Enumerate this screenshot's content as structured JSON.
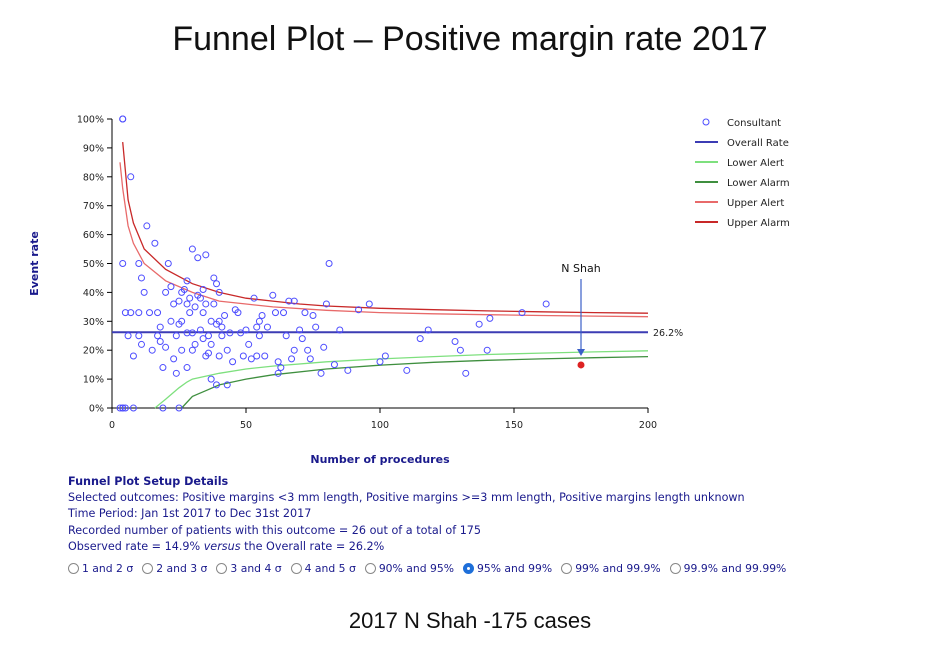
{
  "page": {
    "title": "Funnel Plot – Positive margin rate 2017",
    "caption": "2017 N Shah -175 cases"
  },
  "chart_data": {
    "type": "scatter",
    "xlabel": "Number of procedures",
    "ylabel": "Event rate",
    "xlim": [
      0,
      200
    ],
    "ylim": [
      0,
      100
    ],
    "xticks": [
      0,
      50,
      100,
      150,
      200
    ],
    "yticks": [
      0,
      10,
      20,
      30,
      40,
      50,
      60,
      70,
      80,
      90,
      100
    ],
    "ytick_suffix": "%",
    "overall_rate": 26.2,
    "overall_label": "26.2%",
    "legend_position": "top-right",
    "legend": [
      {
        "name": "Consultant",
        "kind": "marker",
        "color": "#4d4dff"
      },
      {
        "name": "Overall Rate",
        "kind": "line",
        "color": "#3c3cb4"
      },
      {
        "name": "Lower Alert",
        "kind": "line",
        "color": "#7ee07e"
      },
      {
        "name": "Lower Alarm",
        "kind": "line",
        "color": "#3f8f3f"
      },
      {
        "name": "Upper Alert",
        "kind": "line",
        "color": "#e86a6a"
      },
      {
        "name": "Upper Alarm",
        "kind": "line",
        "color": "#c82828"
      }
    ],
    "limits": {
      "upper_alarm": [
        [
          4,
          92
        ],
        [
          6,
          72
        ],
        [
          8,
          64
        ],
        [
          12,
          55
        ],
        [
          20,
          48
        ],
        [
          30,
          43
        ],
        [
          40,
          40
        ],
        [
          50,
          38
        ],
        [
          60,
          37
        ],
        [
          70,
          36
        ],
        [
          80,
          35.3
        ],
        [
          100,
          34.5
        ],
        [
          120,
          34.0
        ],
        [
          140,
          33.6
        ],
        [
          160,
          33.3
        ],
        [
          180,
          33.0
        ],
        [
          200,
          32.8
        ]
      ],
      "upper_alert": [
        [
          3,
          85
        ],
        [
          4,
          76
        ],
        [
          6,
          63
        ],
        [
          8,
          57
        ],
        [
          12,
          50
        ],
        [
          20,
          44
        ],
        [
          30,
          40
        ],
        [
          40,
          37
        ],
        [
          50,
          36
        ],
        [
          60,
          35
        ],
        [
          80,
          33.8
        ],
        [
          100,
          33.0
        ],
        [
          120,
          32.6
        ],
        [
          140,
          32.3
        ],
        [
          160,
          32.0
        ],
        [
          180,
          31.8
        ],
        [
          200,
          31.6
        ]
      ],
      "lower_alert": [
        [
          16,
          0
        ],
        [
          20,
          3
        ],
        [
          25,
          7
        ],
        [
          28,
          9
        ],
        [
          30,
          10
        ],
        [
          40,
          12
        ],
        [
          50,
          13.5
        ],
        [
          60,
          14.5
        ],
        [
          80,
          16
        ],
        [
          100,
          17
        ],
        [
          120,
          17.8
        ],
        [
          140,
          18.5
        ],
        [
          160,
          19
        ],
        [
          180,
          19.4
        ],
        [
          200,
          19.8
        ]
      ],
      "lower_alarm": [
        [
          26,
          0
        ],
        [
          30,
          4
        ],
        [
          35,
          6
        ],
        [
          40,
          8
        ],
        [
          50,
          10
        ],
        [
          60,
          11.5
        ],
        [
          80,
          13.5
        ],
        [
          100,
          14.8
        ],
        [
          120,
          15.8
        ],
        [
          140,
          16.5
        ],
        [
          160,
          17
        ],
        [
          180,
          17.4
        ],
        [
          200,
          17.8
        ]
      ]
    },
    "points": [
      [
        4,
        100
      ],
      [
        4,
        100
      ],
      [
        3,
        0
      ],
      [
        4,
        0
      ],
      [
        4,
        0
      ],
      [
        5,
        0
      ],
      [
        4,
        50
      ],
      [
        5,
        33
      ],
      [
        6,
        25
      ],
      [
        7,
        33
      ],
      [
        7,
        80
      ],
      [
        8,
        18
      ],
      [
        8,
        0
      ],
      [
        10,
        50
      ],
      [
        10,
        33
      ],
      [
        10,
        25
      ],
      [
        11,
        22
      ],
      [
        11,
        45
      ],
      [
        12,
        40
      ],
      [
        13,
        63
      ],
      [
        14,
        33
      ],
      [
        15,
        20
      ],
      [
        16,
        57
      ],
      [
        17,
        25
      ],
      [
        17,
        33
      ],
      [
        18,
        28
      ],
      [
        18,
        23
      ],
      [
        19,
        14
      ],
      [
        19,
        0
      ],
      [
        20,
        21
      ],
      [
        20,
        40
      ],
      [
        21,
        50
      ],
      [
        22,
        30
      ],
      [
        22,
        42
      ],
      [
        23,
        36
      ],
      [
        23,
        17
      ],
      [
        24,
        12
      ],
      [
        24,
        25
      ],
      [
        25,
        0
      ],
      [
        25,
        37
      ],
      [
        25,
        29
      ],
      [
        26,
        30
      ],
      [
        26,
        20
      ],
      [
        26,
        40
      ],
      [
        27,
        41
      ],
      [
        28,
        36
      ],
      [
        28,
        44
      ],
      [
        28,
        14
      ],
      [
        28,
        26
      ],
      [
        29,
        33
      ],
      [
        29,
        38
      ],
      [
        30,
        20
      ],
      [
        30,
        26
      ],
      [
        30,
        55
      ],
      [
        31,
        22
      ],
      [
        31,
        35
      ],
      [
        32,
        39
      ],
      [
        32,
        52
      ],
      [
        33,
        27
      ],
      [
        33,
        38
      ],
      [
        34,
        33
      ],
      [
        34,
        41
      ],
      [
        34,
        24
      ],
      [
        35,
        36
      ],
      [
        35,
        18
      ],
      [
        35,
        53
      ],
      [
        36,
        19
      ],
      [
        36,
        25
      ],
      [
        37,
        30
      ],
      [
        37,
        10
      ],
      [
        37,
        22
      ],
      [
        38,
        45
      ],
      [
        38,
        36
      ],
      [
        39,
        29
      ],
      [
        39,
        43
      ],
      [
        39,
        8
      ],
      [
        40,
        30
      ],
      [
        40,
        18
      ],
      [
        40,
        40
      ],
      [
        41,
        25
      ],
      [
        41,
        28
      ],
      [
        42,
        32
      ],
      [
        43,
        20
      ],
      [
        43,
        8
      ],
      [
        44,
        26
      ],
      [
        45,
        16
      ],
      [
        46,
        34
      ],
      [
        47,
        33
      ],
      [
        48,
        26
      ],
      [
        49,
        18
      ],
      [
        50,
        27
      ],
      [
        51,
        22
      ],
      [
        52,
        17
      ],
      [
        53,
        38
      ],
      [
        54,
        18
      ],
      [
        54,
        28
      ],
      [
        55,
        30
      ],
      [
        55,
        25
      ],
      [
        56,
        32
      ],
      [
        57,
        18
      ],
      [
        58,
        28
      ],
      [
        60,
        39
      ],
      [
        61,
        33
      ],
      [
        62,
        12
      ],
      [
        62,
        16
      ],
      [
        63,
        14
      ],
      [
        64,
        33
      ],
      [
        65,
        25
      ],
      [
        66,
        37
      ],
      [
        67,
        17
      ],
      [
        68,
        20
      ],
      [
        68,
        37
      ],
      [
        70,
        27
      ],
      [
        71,
        24
      ],
      [
        72,
        33
      ],
      [
        73,
        20
      ],
      [
        74,
        17
      ],
      [
        75,
        32
      ],
      [
        76,
        28
      ],
      [
        78,
        12
      ],
      [
        79,
        21
      ],
      [
        80,
        36
      ],
      [
        81,
        50
      ],
      [
        83,
        15
      ],
      [
        85,
        27
      ],
      [
        88,
        13
      ],
      [
        92,
        34
      ],
      [
        96,
        36
      ],
      [
        100,
        16
      ],
      [
        102,
        18
      ],
      [
        110,
        13
      ],
      [
        115,
        24
      ],
      [
        118,
        27
      ],
      [
        128,
        23
      ],
      [
        130,
        20
      ],
      [
        132,
        12
      ],
      [
        137,
        29
      ],
      [
        140,
        20
      ],
      [
        141,
        31
      ],
      [
        153,
        33
      ],
      [
        162,
        36
      ]
    ],
    "highlight": {
      "name": "N Shah",
      "x": 175,
      "y": 14.9,
      "color": "#dd2222"
    }
  },
  "setup": {
    "header": "Funnel Plot Setup Details",
    "outcomes": "Selected outcomes: Positive margins <3 mm length, Positive margins >=3 mm length, Positive margins length unknown",
    "period": "Time Period: Jan 1st 2017 to Dec 31st 2017",
    "recorded": "Recorded number of patients with this outcome = 26 out of a total of 175",
    "observed_pre": "Observed rate = 14.9% ",
    "observed_versus": "versus",
    "observed_post": " the Overall rate = 26.2%"
  },
  "radios": [
    {
      "label": "1 and 2 σ",
      "checked": false
    },
    {
      "label": "2 and 3 σ",
      "checked": false
    },
    {
      "label": "3 and 4 σ",
      "checked": false
    },
    {
      "label": "4 and 5 σ",
      "checked": false
    },
    {
      "label": "90% and 95%",
      "checked": false
    },
    {
      "label": "95% and 99%",
      "checked": true
    },
    {
      "label": "99% and 99.9%",
      "checked": false
    },
    {
      "label": "99.9% and 99.99%",
      "checked": false
    }
  ]
}
